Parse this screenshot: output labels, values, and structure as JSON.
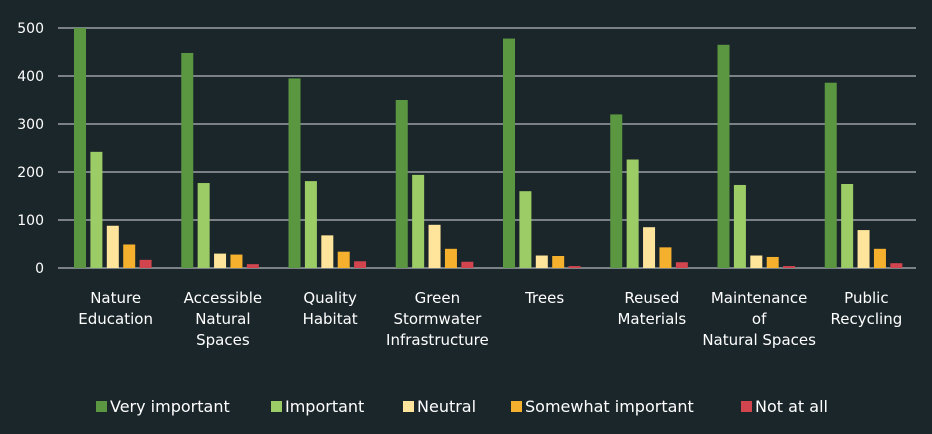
{
  "chart_data": {
    "type": "bar",
    "title": "",
    "xlabel": "",
    "ylabel": "",
    "ylim": [
      0,
      500
    ],
    "yticks": [
      0,
      100,
      200,
      300,
      400,
      500
    ],
    "grid": true,
    "legend_position": "bottom",
    "categories": [
      "Nature Education",
      "Accessible Natural Spaces",
      "Quality Habitat",
      "Green Stormwater Infrastructure",
      "Trees",
      "Reused Materials",
      "Maintenance of Natural Spaces",
      "Public Recycling"
    ],
    "category_label_lines": [
      [
        "Nature",
        "Education"
      ],
      [
        "Accessible",
        "Natural",
        "Spaces"
      ],
      [
        "Quality",
        "Habitat"
      ],
      [
        "Green",
        "Stormwater",
        "Infrastructure"
      ],
      [
        "Trees"
      ],
      [
        "Reused",
        "Materials"
      ],
      [
        "Maintenance",
        "of",
        "Natural Spaces"
      ],
      [
        "Public",
        "Recycling"
      ]
    ],
    "series": [
      {
        "name": "Very important",
        "color": "#5b9641",
        "values": [
          500,
          448,
          395,
          350,
          478,
          320,
          465,
          386
        ]
      },
      {
        "name": "Important",
        "color": "#9ccc65",
        "values": [
          242,
          177,
          181,
          194,
          160,
          226,
          173,
          175
        ]
      },
      {
        "name": "Neutral",
        "color": "#ffe49c",
        "values": [
          88,
          30,
          68,
          90,
          26,
          85,
          26,
          79
        ]
      },
      {
        "name": "Somewhat important",
        "color": "#f5b02e",
        "values": [
          49,
          28,
          34,
          40,
          25,
          43,
          23,
          40
        ]
      },
      {
        "name": "Not at all",
        "color": "#d2454f",
        "values": [
          17,
          8,
          14,
          13,
          4,
          12,
          4,
          10
        ]
      }
    ]
  }
}
